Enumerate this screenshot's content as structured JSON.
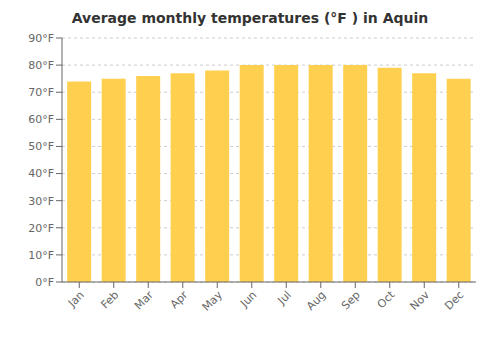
{
  "chart_data": {
    "type": "bar",
    "title": "Average monthly temperatures (°F ) in Aquin",
    "categories": [
      "Jan",
      "Feb",
      "Mar",
      "Apr",
      "May",
      "Jun",
      "Jul",
      "Aug",
      "Sep",
      "Oct",
      "Nov",
      "Dec"
    ],
    "values": [
      74,
      75,
      76,
      77,
      78,
      80,
      80,
      80,
      80,
      79,
      77,
      75
    ],
    "color": "#FFD050",
    "ylim": [
      0,
      90
    ],
    "yticks": [
      {
        "value": 0,
        "label": "0°F"
      },
      {
        "value": 10,
        "label": "10°F"
      },
      {
        "value": 20,
        "label": "20°F"
      },
      {
        "value": 30,
        "label": "30°F"
      },
      {
        "value": 40,
        "label": "40°F"
      },
      {
        "value": 50,
        "label": "50°F"
      },
      {
        "value": 60,
        "label": "60°F"
      },
      {
        "value": 70,
        "label": "70°F"
      },
      {
        "value": 80,
        "label": "80°F"
      },
      {
        "value": 90,
        "label": "90°F"
      }
    ],
    "grid": true
  }
}
